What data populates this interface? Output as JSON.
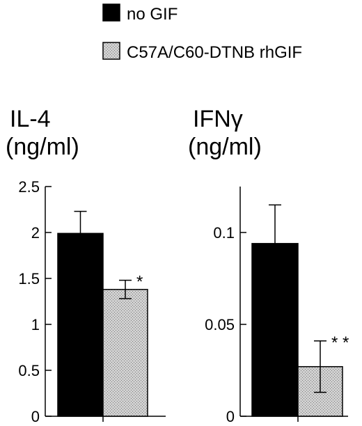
{
  "legend": [
    {
      "label": "no GIF",
      "color": "#000000",
      "pattern": "solid"
    },
    {
      "label": "C57A/C60-DTNB rhGIF",
      "color": "#c8c8c8",
      "pattern": "stipple"
    }
  ],
  "chart_data": [
    {
      "type": "bar",
      "ylabel_lines": [
        "IL-4",
        "(ng/ml)"
      ],
      "ylim": [
        0,
        2.5
      ],
      "yticks": [
        "0",
        "0.5",
        "1",
        "1.5",
        "2",
        "2.5"
      ],
      "ytick_values": [
        0,
        0.5,
        1,
        1.5,
        2,
        2.5
      ],
      "series": [
        {
          "label": "no GIF",
          "value": 1.99,
          "error": 0.24,
          "significance": ""
        },
        {
          "label": "C57A/C60-DTNB rhGIF",
          "value": 1.38,
          "error": 0.1,
          "significance": "*"
        }
      ]
    },
    {
      "type": "bar",
      "ylabel_lines": [
        "IFNγ",
        "(ng/ml)"
      ],
      "ylim": [
        0,
        0.125
      ],
      "yticks": [
        "0",
        "0.05",
        "0.1"
      ],
      "ytick_values": [
        0,
        0.05,
        0.1
      ],
      "series": [
        {
          "label": "no GIF",
          "value": 0.094,
          "error": 0.021,
          "significance": ""
        },
        {
          "label": "C57A/C60-DTNB rhGIF",
          "value": 0.027,
          "error": 0.014,
          "significance": "* *"
        }
      ]
    }
  ]
}
